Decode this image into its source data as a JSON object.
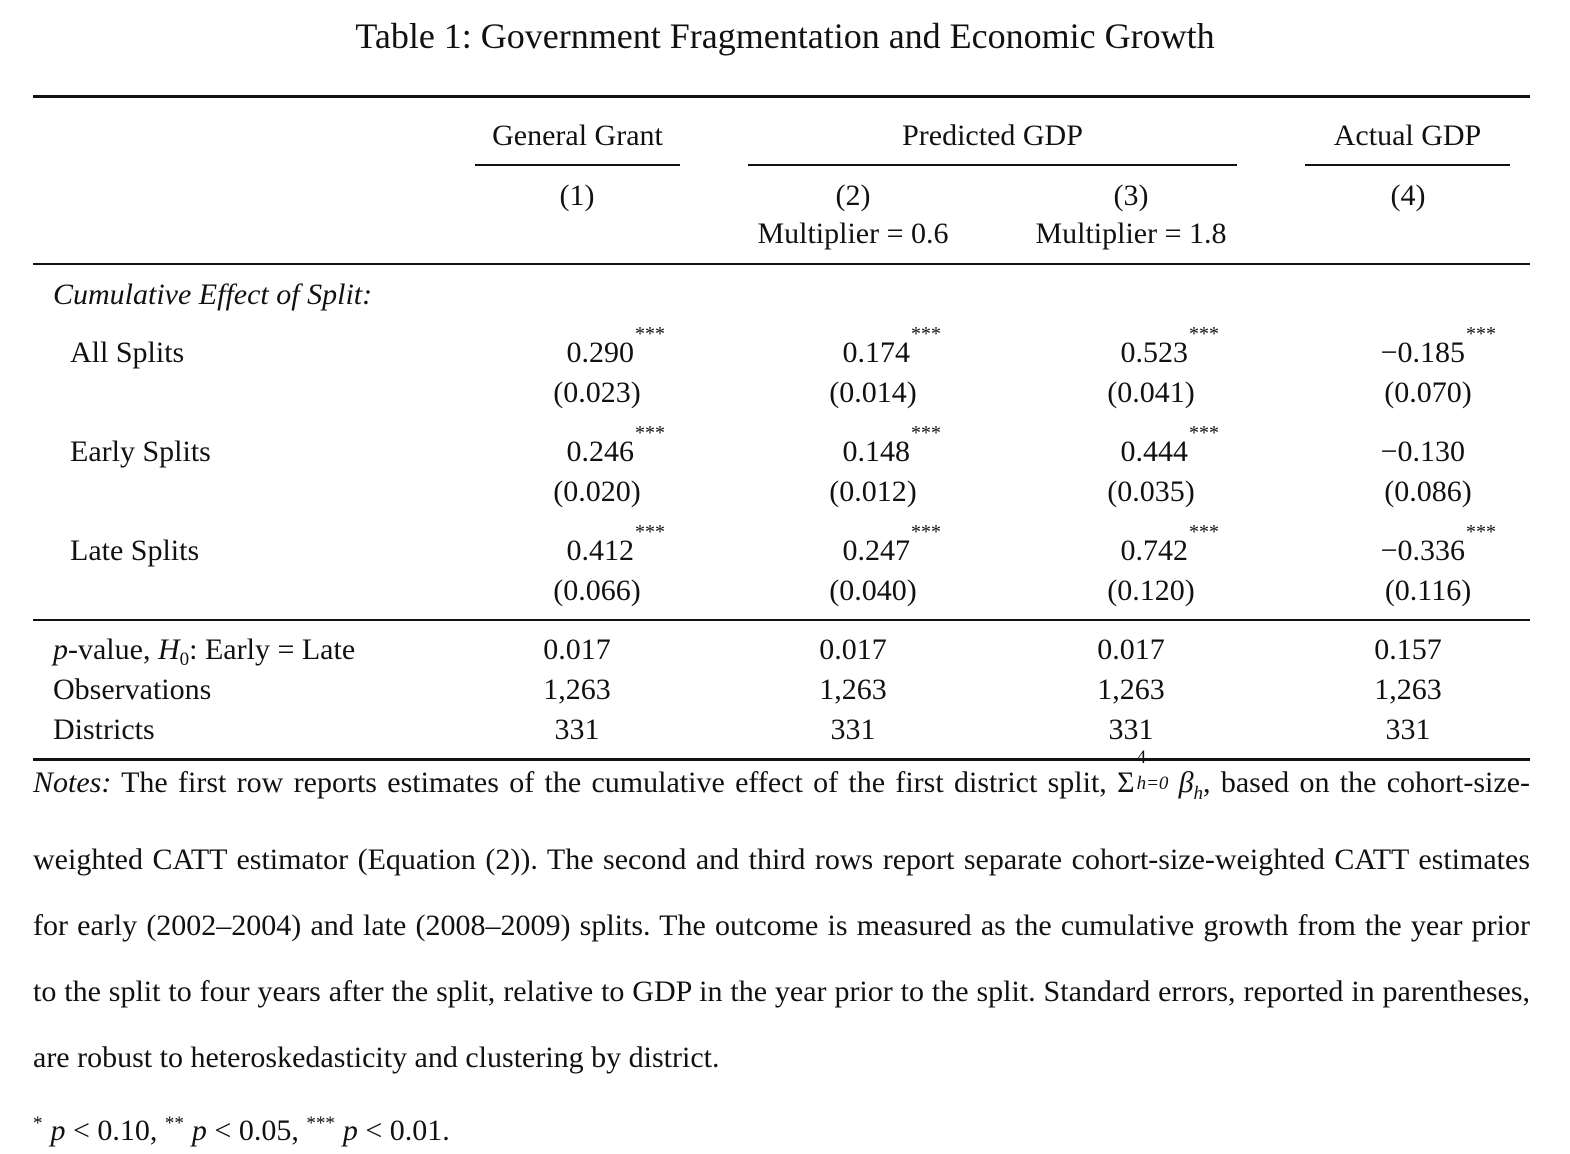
{
  "title": "Table 1: Government Fragmentation and Economic Growth",
  "table": {
    "group_headers": [
      "General Grant",
      "Predicted GDP",
      "Actual GDP"
    ],
    "columns": [
      {
        "number": "(1)"
      },
      {
        "number": "(2)",
        "subheader": "Multiplier = 0.6"
      },
      {
        "number": "(3)",
        "subheader": "Multiplier = 1.8"
      },
      {
        "number": "(4)"
      }
    ],
    "section_label": "Cumulative Effect of Split:",
    "rows": [
      {
        "label": "All Splits",
        "estimates": [
          {
            "value": "0.290",
            "stars": "***"
          },
          {
            "value": "0.174",
            "stars": "***"
          },
          {
            "value": "0.523",
            "stars": "***"
          },
          {
            "value": "−0.185",
            "stars": "***"
          }
        ],
        "std_errors": [
          "(0.023)",
          "(0.014)",
          "(0.041)",
          "(0.070)"
        ]
      },
      {
        "label": "Early Splits",
        "estimates": [
          {
            "value": "0.246",
            "stars": "***"
          },
          {
            "value": "0.148",
            "stars": "***"
          },
          {
            "value": "0.444",
            "stars": "***"
          },
          {
            "value": "−0.130"
          }
        ],
        "std_errors": [
          "(0.020)",
          "(0.012)",
          "(0.035)",
          "(0.086)"
        ]
      },
      {
        "label": "Late Splits",
        "estimates": [
          {
            "value": "0.412",
            "stars": "***"
          },
          {
            "value": "0.247",
            "stars": "***"
          },
          {
            "value": "0.742",
            "stars": "***"
          },
          {
            "value": "−0.336",
            "stars": "***"
          }
        ],
        "std_errors": [
          "(0.066)",
          "(0.040)",
          "(0.120)",
          "(0.116)"
        ]
      }
    ],
    "stats": [
      {
        "label_parts": [
          "p",
          "-value, ",
          "H",
          "0",
          ": Early = Late"
        ],
        "values": [
          "0.017",
          "0.017",
          "0.017",
          "0.157"
        ]
      },
      {
        "label": "Observations",
        "values": [
          "1,263",
          "1,263",
          "1,263",
          "1,263"
        ]
      },
      {
        "label": "Districts",
        "values": [
          "331",
          "331",
          "331",
          "331"
        ]
      }
    ]
  },
  "notes": {
    "label": "Notes:",
    "text_before": " The first row reports estimates of the cumulative effect of the first district split, ",
    "sum": {
      "symbol": "Σ",
      "upper": "4",
      "lower": "h=0",
      "term": "β",
      "term_sub": "h"
    },
    "text_after": ", based on the cohort-size-weighted CATT estimator (Equation (2)). The second and third rows report separate cohort-size-weighted CATT estimates for early (2002–2004) and late (2008–2009) splits. The outcome is measured as the cumulative growth from the year prior to the split to four years after the split, relative to GDP in the year prior to the split. Standard errors, reported in parentheses, are robust to heteroskedasticity and clustering by district.",
    "significance": [
      {
        "stars": "*",
        "p": "p",
        "text": " < 0.10, "
      },
      {
        "stars": "**",
        "p": "p",
        "text": " < 0.05, "
      },
      {
        "stars": "***",
        "p": "p",
        "text": " < 0.01."
      }
    ]
  }
}
